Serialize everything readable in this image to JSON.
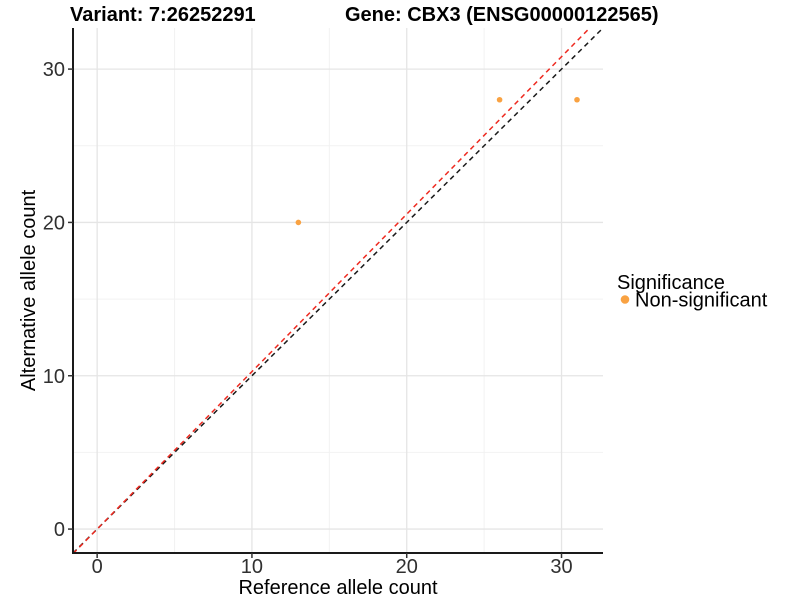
{
  "chart_data": {
    "type": "scatter",
    "titles": {
      "left": "Variant: 7:26252291",
      "right": "Gene: CBX3 (ENSG00000122565)"
    },
    "xlabel": "Reference allele count",
    "ylabel": "Alternative allele count",
    "xlim": [
      -1.56,
      32.68
    ],
    "ylim": [
      -1.56,
      32.68
    ],
    "x_ticks": [
      0,
      10,
      20,
      30
    ],
    "y_ticks": [
      0,
      10,
      20,
      30
    ],
    "x_tick_labels": [
      "0",
      "10",
      "20",
      "30"
    ],
    "y_tick_labels": [
      "0",
      "10",
      "20",
      "30"
    ],
    "x_minor_ticks": [
      5,
      15,
      25
    ],
    "y_minor_ticks": [
      5,
      15,
      25
    ],
    "grid": "major+minor",
    "points": [
      {
        "x": 13,
        "y": 20,
        "significance": "Non-significant"
      },
      {
        "x": 26,
        "y": 28,
        "significance": "Non-significant"
      },
      {
        "x": 31,
        "y": 28,
        "significance": "Non-significant"
      }
    ],
    "ref_lines": [
      {
        "name": "identity-line",
        "slope": 1.0,
        "intercept": 0,
        "color": "#1a1a1a",
        "style": "dashed"
      },
      {
        "name": "expected-ratio-line",
        "slope": 1.027,
        "intercept": 0,
        "color": "#ee2a20",
        "style": "dashed"
      }
    ],
    "legend": {
      "position": "right",
      "title": "Significance",
      "items": [
        {
          "label": "Non-significant",
          "color": "#f9a242"
        }
      ]
    },
    "colors": {
      "point": "#f9a242",
      "grid_major": "#e5e5e5",
      "grid_minor": "#f2f2f2",
      "axis_line": "#1a1a1a",
      "tick": "#333333",
      "tick_label": "#303030",
      "title_text": "#000000",
      "background": "#ffffff"
    }
  }
}
